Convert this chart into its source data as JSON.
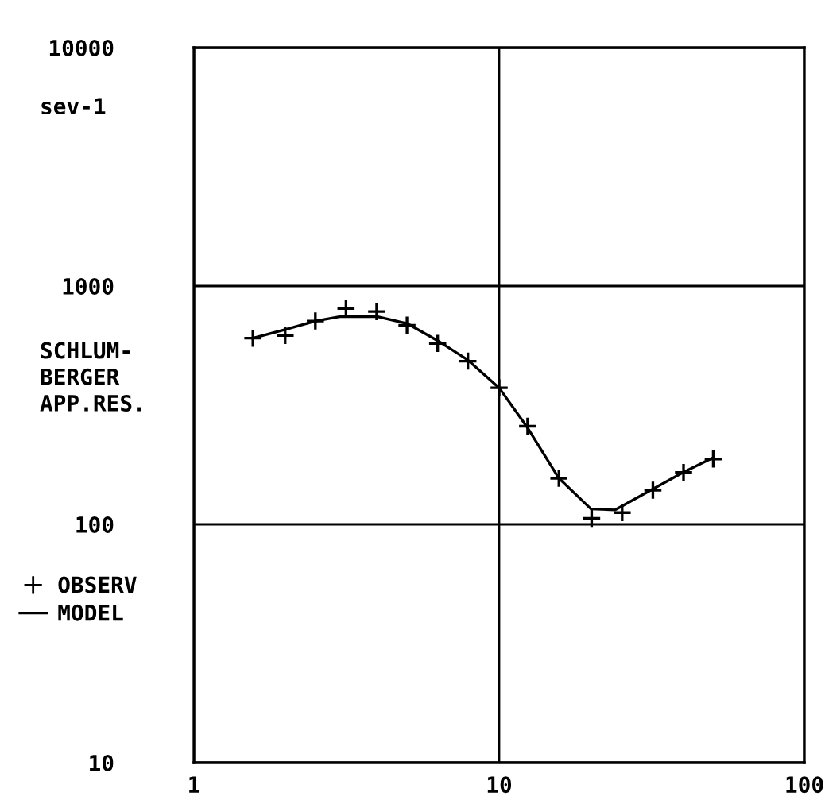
{
  "chart_data": {
    "type": "scatter",
    "title": "sev-1",
    "ylabel": "SCHLUM-\nBERGER\nAPP.RES.",
    "log": "xy",
    "xlim": [
      1,
      100
    ],
    "xticks": [
      1,
      10,
      100
    ],
    "ylim": [
      10,
      10000
    ],
    "yticks": [
      10,
      100,
      1000,
      10000
    ],
    "grid": true,
    "legend": "left",
    "series": [
      {
        "name": "OBSERV",
        "marker": "cross",
        "color": "#000000",
        "x": [
          1.56,
          1.99,
          2.5,
          3.15,
          3.97,
          4.99,
          6.29,
          7.9,
          10,
          12.4,
          15.7,
          20.1,
          25.3,
          31.9,
          40.2,
          50.3
        ],
        "values": [
          604,
          620,
          713,
          805,
          781,
          685,
          574,
          484,
          374,
          258,
          156,
          106,
          112,
          139,
          165,
          188
        ]
      },
      {
        "name": "MODEL",
        "type": "line",
        "line_style": "solid",
        "color": "#000000",
        "x": [
          1.56,
          2.0,
          2.5,
          3.0,
          4.0,
          5.0,
          6.3,
          7.9,
          10,
          12.4,
          15.7,
          20,
          24,
          32,
          40,
          50
        ],
        "values": [
          604,
          658,
          713,
          743,
          743,
          696,
          589,
          489,
          374,
          254,
          156,
          116,
          115,
          141,
          165,
          190
        ]
      }
    ]
  }
}
